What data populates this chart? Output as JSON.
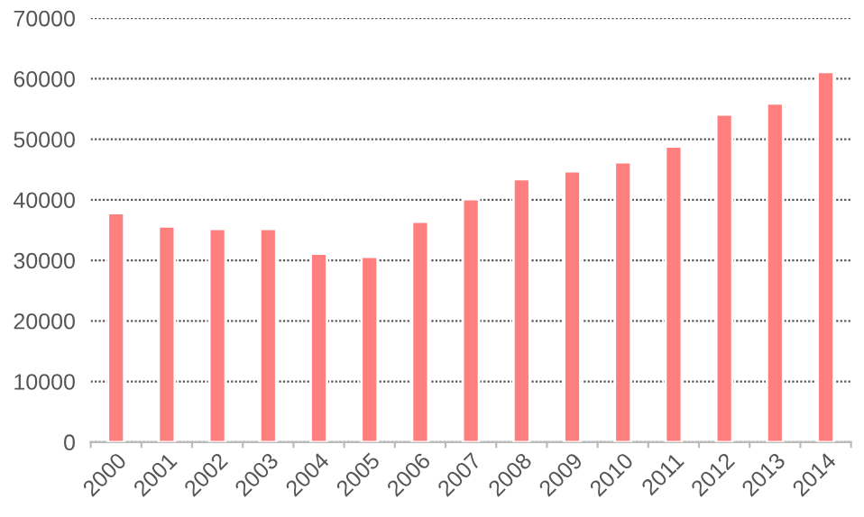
{
  "chart_data": {
    "type": "bar",
    "categories": [
      "2000",
      "2001",
      "2002",
      "2003",
      "2004",
      "2005",
      "2006",
      "2007",
      "2008",
      "2009",
      "2010",
      "2011",
      "2012",
      "2013",
      "2014"
    ],
    "values": [
      37800,
      35600,
      35200,
      35200,
      31100,
      30600,
      36400,
      40100,
      43400,
      44700,
      46200,
      48800,
      54100,
      55900,
      61100
    ],
    "color": "#ff7f7f",
    "ylim": [
      0,
      70000
    ],
    "yticks": [
      0,
      10000,
      20000,
      30000,
      40000,
      50000,
      60000,
      70000
    ],
    "grid": "y"
  }
}
